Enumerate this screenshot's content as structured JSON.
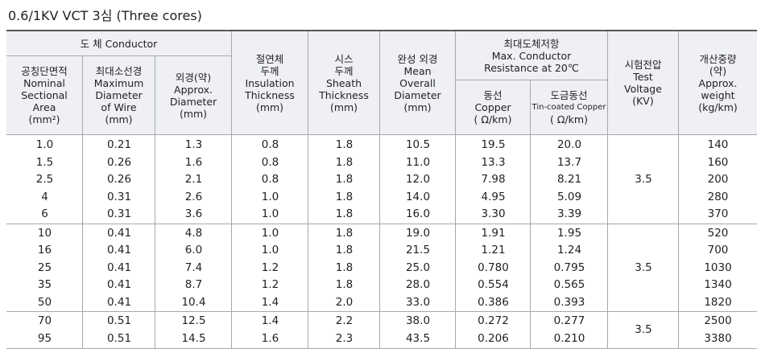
{
  "title": "0.6/1KV VCT 3심 (Three cores)",
  "header": {
    "conductor": "도 체 Conductor",
    "nominal_area": [
      "공칭단면적",
      "Nominal",
      "Sectional",
      "Area",
      "(mm²)"
    ],
    "wire_diameter": [
      "최대소선경",
      "Maximum",
      "Diameter",
      "of Wire",
      "(mm)"
    ],
    "approx_diameter": [
      "외경(약)",
      "Approx.",
      "Diameter",
      "(mm)"
    ],
    "insulation": [
      "절연체",
      "두께",
      "Insulation",
      "Thickness",
      "(mm)"
    ],
    "sheath": [
      "시스",
      "두께",
      "Sheath",
      "Thickness",
      "(mm)"
    ],
    "overall": [
      "완성 외경",
      "Mean",
      "Overall",
      "Diameter",
      "(mm)"
    ],
    "resistance": [
      "최대도체저항",
      "Max. Conductor",
      "Resistance at 20℃"
    ],
    "copper": [
      "동선",
      "Copper",
      "( Ω/km)"
    ],
    "tin_copper": [
      "도금동선",
      "Tin-coated Copper",
      "( Ω/km)"
    ],
    "voltage": [
      "시험전압",
      "Test",
      "Voltage",
      "(KV)"
    ],
    "weight": [
      "개산중량",
      "(약)",
      "Approx.",
      "weight",
      "(kg/km)"
    ]
  },
  "table": {
    "groups": [
      {
        "voltage": "3.5",
        "rows": [
          [
            "1.0",
            "0.21",
            "1.3",
            "0.8",
            "1.8",
            "10.5",
            "19.5",
            "20.0",
            "140"
          ],
          [
            "1.5",
            "0.26",
            "1.6",
            "0.8",
            "1.8",
            "11.0",
            "13.3",
            "13.7",
            "160"
          ],
          [
            "2.5",
            "0.26",
            "2.1",
            "0.8",
            "1.8",
            "12.0",
            "7.98",
            "8.21",
            "200"
          ],
          [
            "4",
            "0.31",
            "2.6",
            "1.0",
            "1.8",
            "14.0",
            "4.95",
            "5.09",
            "280"
          ],
          [
            "6",
            "0.31",
            "3.6",
            "1.0",
            "1.8",
            "16.0",
            "3.30",
            "3.39",
            "370"
          ]
        ]
      },
      {
        "voltage": "3.5",
        "rows": [
          [
            "10",
            "0.41",
            "4.8",
            "1.0",
            "1.8",
            "19.0",
            "1.91",
            "1.95",
            "520"
          ],
          [
            "16",
            "0.41",
            "6.0",
            "1.0",
            "1.8",
            "21.5",
            "1.21",
            "1.24",
            "700"
          ],
          [
            "25",
            "0.41",
            "7.4",
            "1.2",
            "1.8",
            "25.0",
            "0.780",
            "0.795",
            "1030"
          ],
          [
            "35",
            "0.41",
            "8.7",
            "1.2",
            "1.8",
            "28.0",
            "0.554",
            "0.565",
            "1340"
          ],
          [
            "50",
            "0.41",
            "10.4",
            "1.4",
            "2.0",
            "33.0",
            "0.386",
            "0.393",
            "1820"
          ]
        ]
      },
      {
        "voltage": "3.5",
        "rows": [
          [
            "70",
            "0.51",
            "12.5",
            "1.4",
            "2.2",
            "38.0",
            "0.272",
            "0.277",
            "2500"
          ],
          [
            "95",
            "0.51",
            "14.5",
            "1.6",
            "2.3",
            "43.5",
            "0.206",
            "0.210",
            "3380"
          ]
        ]
      }
    ]
  }
}
